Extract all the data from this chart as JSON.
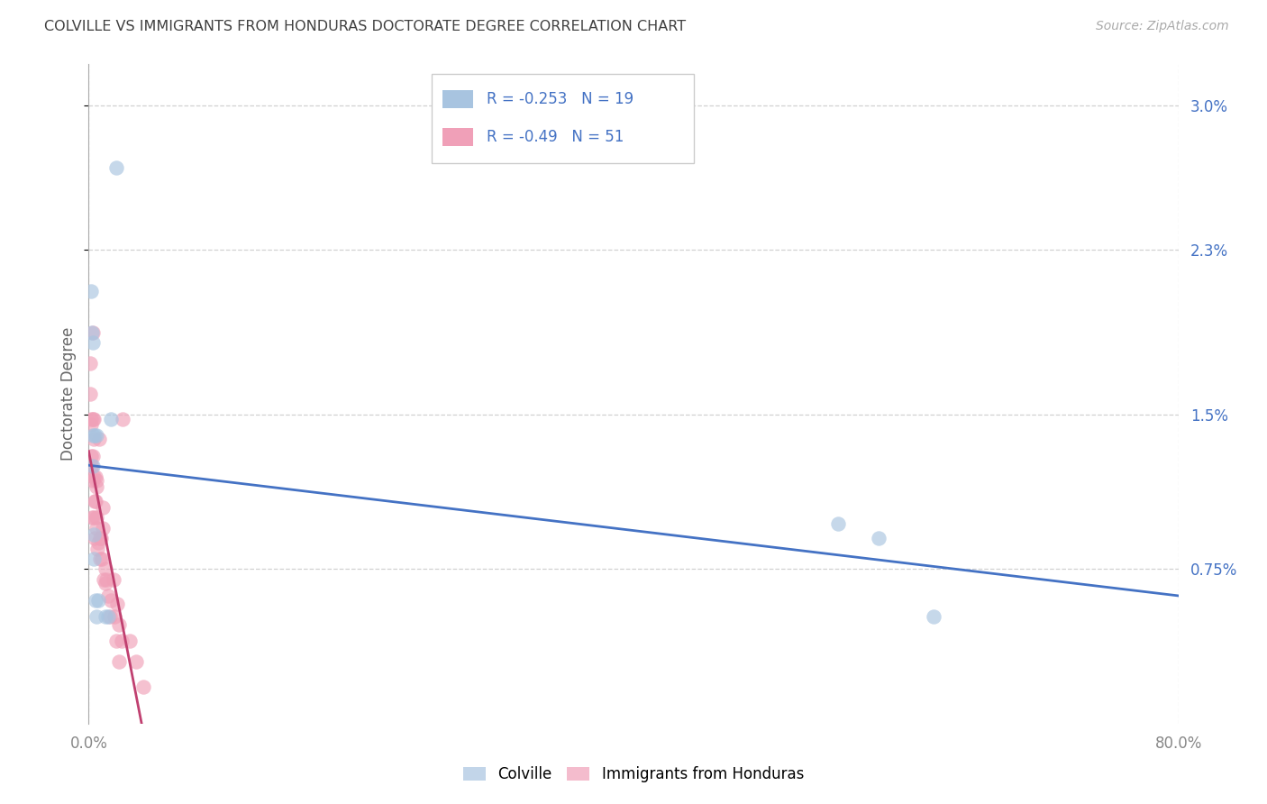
{
  "title": "COLVILLE VS IMMIGRANTS FROM HONDURAS DOCTORATE DEGREE CORRELATION CHART",
  "source": "Source: ZipAtlas.com",
  "ylabel": "Doctorate Degree",
  "xlim_min": 0.0,
  "xlim_max": 80.0,
  "ylim_min": 0.0,
  "ylim_max": 3.2,
  "ytick_vals": [
    0.75,
    1.5,
    2.3,
    3.0
  ],
  "ytick_labels": [
    "0.75%",
    "1.5%",
    "2.3%",
    "3.0%"
  ],
  "xtick_vals": [
    0.0,
    80.0
  ],
  "xtick_labels": [
    "0.0%",
    "80.0%"
  ],
  "colville_R": -0.253,
  "colville_N": 19,
  "honduras_R": -0.49,
  "honduras_N": 51,
  "blue_color": "#a8c4e0",
  "pink_color": "#f0a0b8",
  "blue_line_color": "#4472c4",
  "pink_line_color": "#c04070",
  "background_color": "#ffffff",
  "grid_color": "#cccccc",
  "title_color": "#404040",
  "legend_text_color": "#4472c4",
  "right_tick_color": "#4472c4",
  "colville_x": [
    0.2,
    0.22,
    0.28,
    0.3,
    0.32,
    0.35,
    0.4,
    0.45,
    0.5,
    0.55,
    0.6,
    0.7,
    1.2,
    1.4,
    1.6,
    2.0,
    55.0,
    58.0,
    62.0
  ],
  "colville_y": [
    2.1,
    1.9,
    1.85,
    1.4,
    1.25,
    0.8,
    0.92,
    1.4,
    0.6,
    0.52,
    1.4,
    0.6,
    0.52,
    0.52,
    1.48,
    2.7,
    0.97,
    0.9,
    0.52
  ],
  "honduras_x": [
    0.1,
    0.12,
    0.15,
    0.15,
    0.2,
    0.2,
    0.25,
    0.25,
    0.28,
    0.3,
    0.3,
    0.3,
    0.35,
    0.35,
    0.4,
    0.4,
    0.45,
    0.45,
    0.5,
    0.5,
    0.55,
    0.55,
    0.6,
    0.6,
    0.65,
    0.7,
    0.75,
    0.8,
    0.85,
    0.9,
    0.95,
    1.0,
    1.05,
    1.1,
    1.2,
    1.25,
    1.3,
    1.45,
    1.55,
    1.6,
    1.8,
    1.9,
    2.0,
    2.1,
    2.2,
    2.25,
    2.4,
    2.5,
    3.0,
    3.5,
    4.0
  ],
  "honduras_y": [
    1.75,
    1.6,
    1.48,
    1.3,
    1.45,
    1.25,
    1.25,
    1.0,
    1.18,
    1.9,
    1.48,
    1.3,
    1.38,
    1.0,
    1.48,
    1.2,
    1.08,
    0.9,
    1.2,
    1.08,
    1.15,
    1.0,
    1.18,
    0.95,
    0.85,
    0.88,
    1.38,
    0.9,
    0.8,
    0.9,
    0.8,
    1.05,
    0.95,
    0.7,
    0.75,
    0.68,
    0.7,
    0.62,
    0.52,
    0.6,
    0.7,
    0.52,
    0.4,
    0.58,
    0.48,
    0.3,
    0.4,
    1.48,
    0.4,
    0.3,
    0.18
  ]
}
